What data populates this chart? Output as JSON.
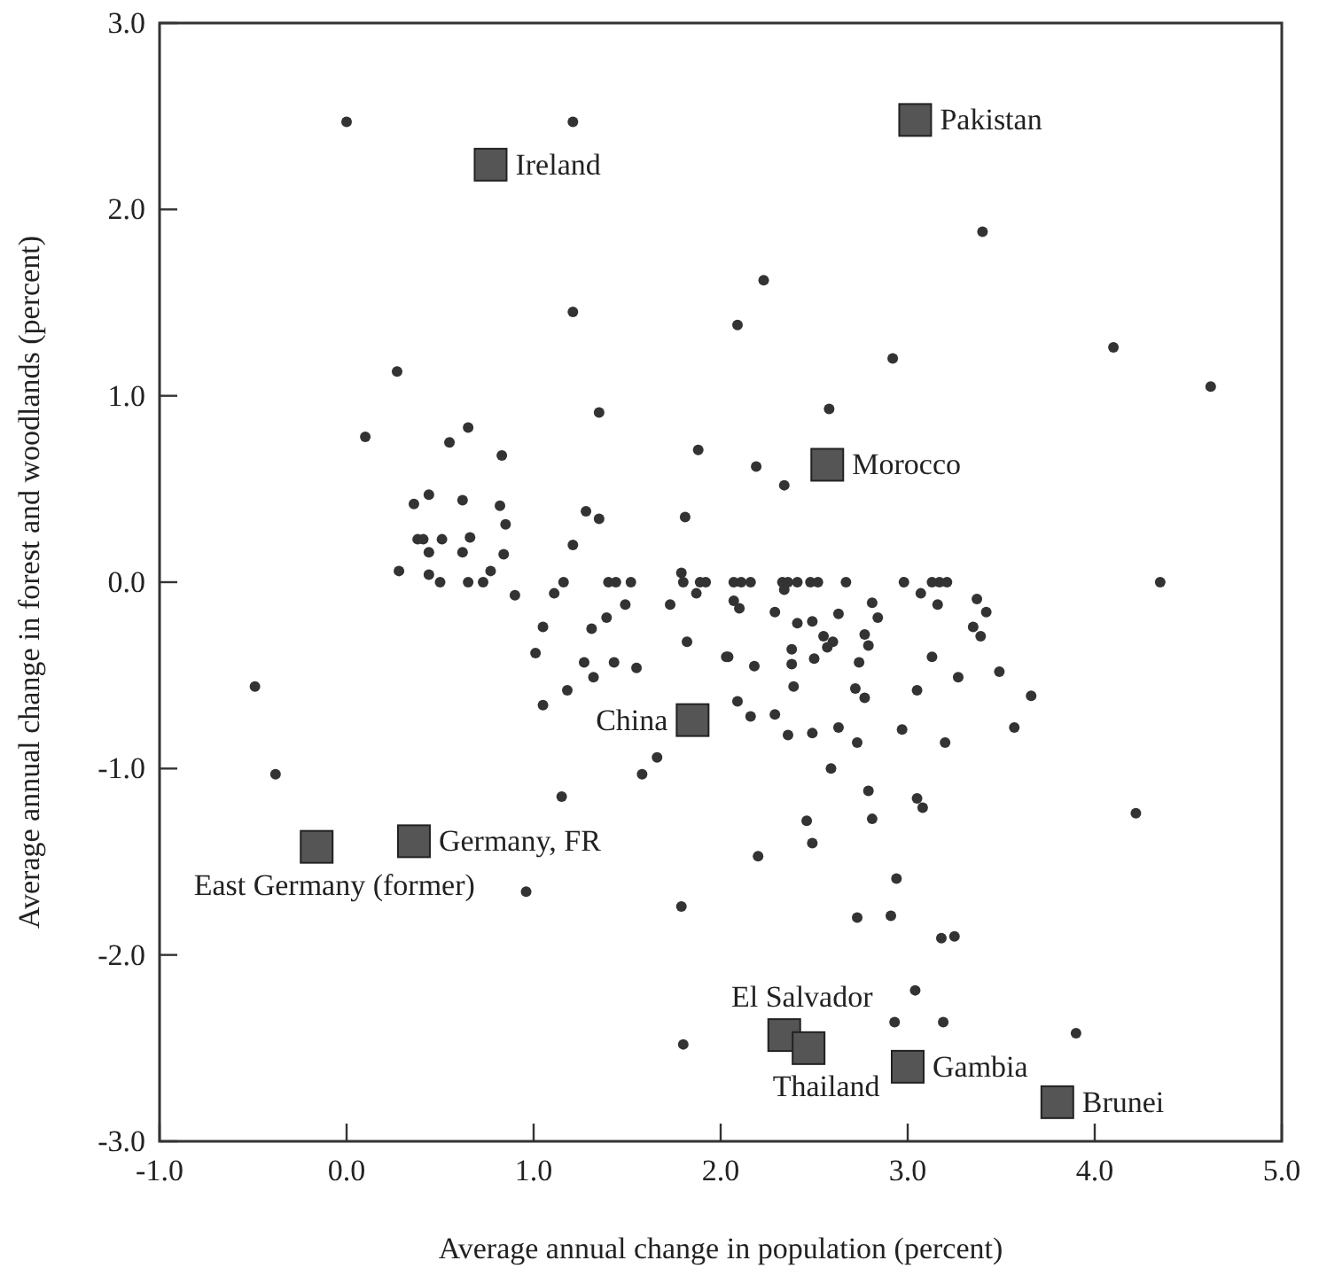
{
  "chart_data": {
    "type": "scatter",
    "xlabel": "Average annual change in population (percent)",
    "ylabel": "Average annual change in forest and woodlands (percent)",
    "xlim": [
      -1,
      5
    ],
    "ylim": [
      -3,
      3
    ],
    "xticks": [
      {
        "value": -1,
        "label": "-1.0"
      },
      {
        "value": 0,
        "label": "0.0"
      },
      {
        "value": 1,
        "label": "1.0"
      },
      {
        "value": 2,
        "label": "2.0"
      },
      {
        "value": 3,
        "label": "3.0"
      },
      {
        "value": 4,
        "label": "4.0"
      },
      {
        "value": 5,
        "label": "5.0"
      }
    ],
    "yticks": [
      {
        "value": -3,
        "label": "-3.0"
      },
      {
        "value": -2,
        "label": "-2.0"
      },
      {
        "value": -1,
        "label": "-1.0"
      },
      {
        "value": 0,
        "label": "0.0"
      },
      {
        "value": 1,
        "label": "1.0"
      },
      {
        "value": 2,
        "label": "2.0"
      },
      {
        "value": 3,
        "label": "3.0"
      }
    ],
    "series": [
      {
        "color": "#333333",
        "marker": "circle",
        "x": [
          0.0,
          1.21,
          1.21,
          0.27,
          0.1,
          1.35,
          1.88,
          0.55,
          0.65,
          0.83,
          0.36,
          0.44,
          0.62,
          0.82,
          0.85,
          1.28,
          1.35,
          1.81,
          0.38,
          0.41,
          0.51,
          0.66,
          0.44,
          0.62,
          0.84,
          1.21,
          0.28,
          0.44,
          0.5,
          0.65,
          0.73,
          0.77,
          1.16,
          1.4,
          1.44,
          1.52,
          1.79,
          1.8,
          1.89,
          1.92,
          3.4,
          2.23,
          2.09,
          4.1,
          4.62,
          2.92,
          2.58,
          2.19,
          2.34,
          4.35,
          -0.49,
          -0.38,
          0.96,
          1.79,
          1.8,
          1.66,
          1.58,
          1.15,
          1.05,
          1.18,
          1.01,
          1.05,
          1.27,
          1.32,
          1.43,
          1.55,
          1.31,
          1.39,
          1.49,
          1.73,
          1.82,
          2.03,
          0.9,
          1.11,
          1.87,
          2.07,
          2.11,
          2.16,
          2.33,
          2.36,
          2.41,
          2.48,
          2.52,
          2.67,
          2.98,
          3.13,
          3.17,
          3.21,
          2.07,
          2.1,
          2.29,
          2.34,
          2.41,
          2.49,
          2.63,
          2.81,
          2.84,
          3.07,
          3.16,
          3.37,
          3.42,
          3.35,
          3.39,
          2.55,
          2.6,
          2.57,
          2.77,
          2.79,
          2.04,
          2.18,
          2.38,
          2.38,
          2.5,
          2.74,
          3.13,
          3.27,
          3.49,
          2.39,
          2.72,
          2.77,
          3.05,
          3.66,
          2.09,
          2.16,
          2.29,
          2.36,
          2.49,
          2.63,
          2.73,
          2.97,
          3.2,
          3.57,
          2.59,
          2.79,
          3.05,
          3.08,
          2.46,
          2.81,
          4.22,
          2.49,
          2.2,
          2.94,
          2.73,
          2.91,
          3.18,
          3.25,
          3.04,
          2.93,
          3.19,
          3.9
        ],
        "values": [
          2.47,
          2.47,
          1.45,
          1.13,
          0.78,
          0.91,
          0.71,
          0.75,
          0.83,
          0.68,
          0.42,
          0.47,
          0.44,
          0.41,
          0.31,
          0.38,
          0.34,
          0.35,
          0.23,
          0.23,
          0.23,
          0.24,
          0.16,
          0.16,
          0.15,
          0.2,
          0.06,
          0.04,
          0,
          0,
          0,
          0.06,
          0,
          0,
          0,
          0,
          0.05,
          0,
          0,
          0,
          1.88,
          1.62,
          1.38,
          1.26,
          1.05,
          1.2,
          0.93,
          0.62,
          0.52,
          0,
          -0.56,
          -1.03,
          -1.66,
          -1.74,
          -2.48,
          -0.94,
          -1.03,
          -1.15,
          -0.66,
          -0.58,
          -0.38,
          -0.24,
          -0.43,
          -0.51,
          -0.43,
          -0.46,
          -0.25,
          -0.19,
          -0.12,
          -0.12,
          -0.32,
          -0.4,
          -0.07,
          -0.06,
          -0.06,
          0,
          0,
          0,
          0,
          0,
          0,
          0,
          0,
          0,
          0,
          0,
          0,
          0,
          -0.1,
          -0.14,
          -0.16,
          -0.04,
          -0.22,
          -0.21,
          -0.17,
          -0.11,
          -0.19,
          -0.06,
          -0.12,
          -0.09,
          -0.16,
          -0.24,
          -0.29,
          -0.29,
          -0.32,
          -0.35,
          -0.28,
          -0.34,
          -0.4,
          -0.45,
          -0.36,
          -0.44,
          -0.41,
          -0.43,
          -0.4,
          -0.51,
          -0.48,
          -0.56,
          -0.57,
          -0.62,
          -0.58,
          -0.61,
          -0.64,
          -0.72,
          -0.71,
          -0.82,
          -0.81,
          -0.78,
          -0.86,
          -0.79,
          -0.86,
          -0.78,
          -1.0,
          -1.12,
          -1.16,
          -1.21,
          -1.28,
          -1.27,
          -1.24,
          -1.4,
          -1.47,
          -1.59,
          -1.8,
          -1.79,
          -1.91,
          -1.9,
          -2.19,
          -2.36,
          -2.36,
          -2.42
        ]
      },
      {
        "color": "#555555",
        "marker": "square",
        "x": [
          0.77,
          3.04,
          2.57,
          1.85,
          0.36,
          -0.16,
          2.34,
          2.47,
          3.0,
          3.8
        ],
        "values": [
          2.24,
          2.48,
          0.63,
          -0.74,
          -1.39,
          -1.42,
          -2.43,
          -2.5,
          -2.6,
          -2.79
        ]
      }
    ],
    "annotations": [
      {
        "text": "Ireland",
        "x": 0.77,
        "y": 2.24
      },
      {
        "text": "Pakistan",
        "x": 3.04,
        "y": 2.48
      },
      {
        "text": "Morocco",
        "x": 2.57,
        "y": 0.63
      },
      {
        "text": "China",
        "x": 1.85,
        "y": -0.74
      },
      {
        "text": "Germany, FR",
        "x": 0.36,
        "y": -1.39
      },
      {
        "text": "East Germany (former)",
        "x": -0.16,
        "y": -1.42
      },
      {
        "text": "El Salvador",
        "x": 2.34,
        "y": -2.43
      },
      {
        "text": "Thailand",
        "x": 2.47,
        "y": -2.5
      },
      {
        "text": "Gambia",
        "x": 3.0,
        "y": -2.6
      },
      {
        "text": "Brunei",
        "x": 3.8,
        "y": -2.79
      }
    ]
  }
}
